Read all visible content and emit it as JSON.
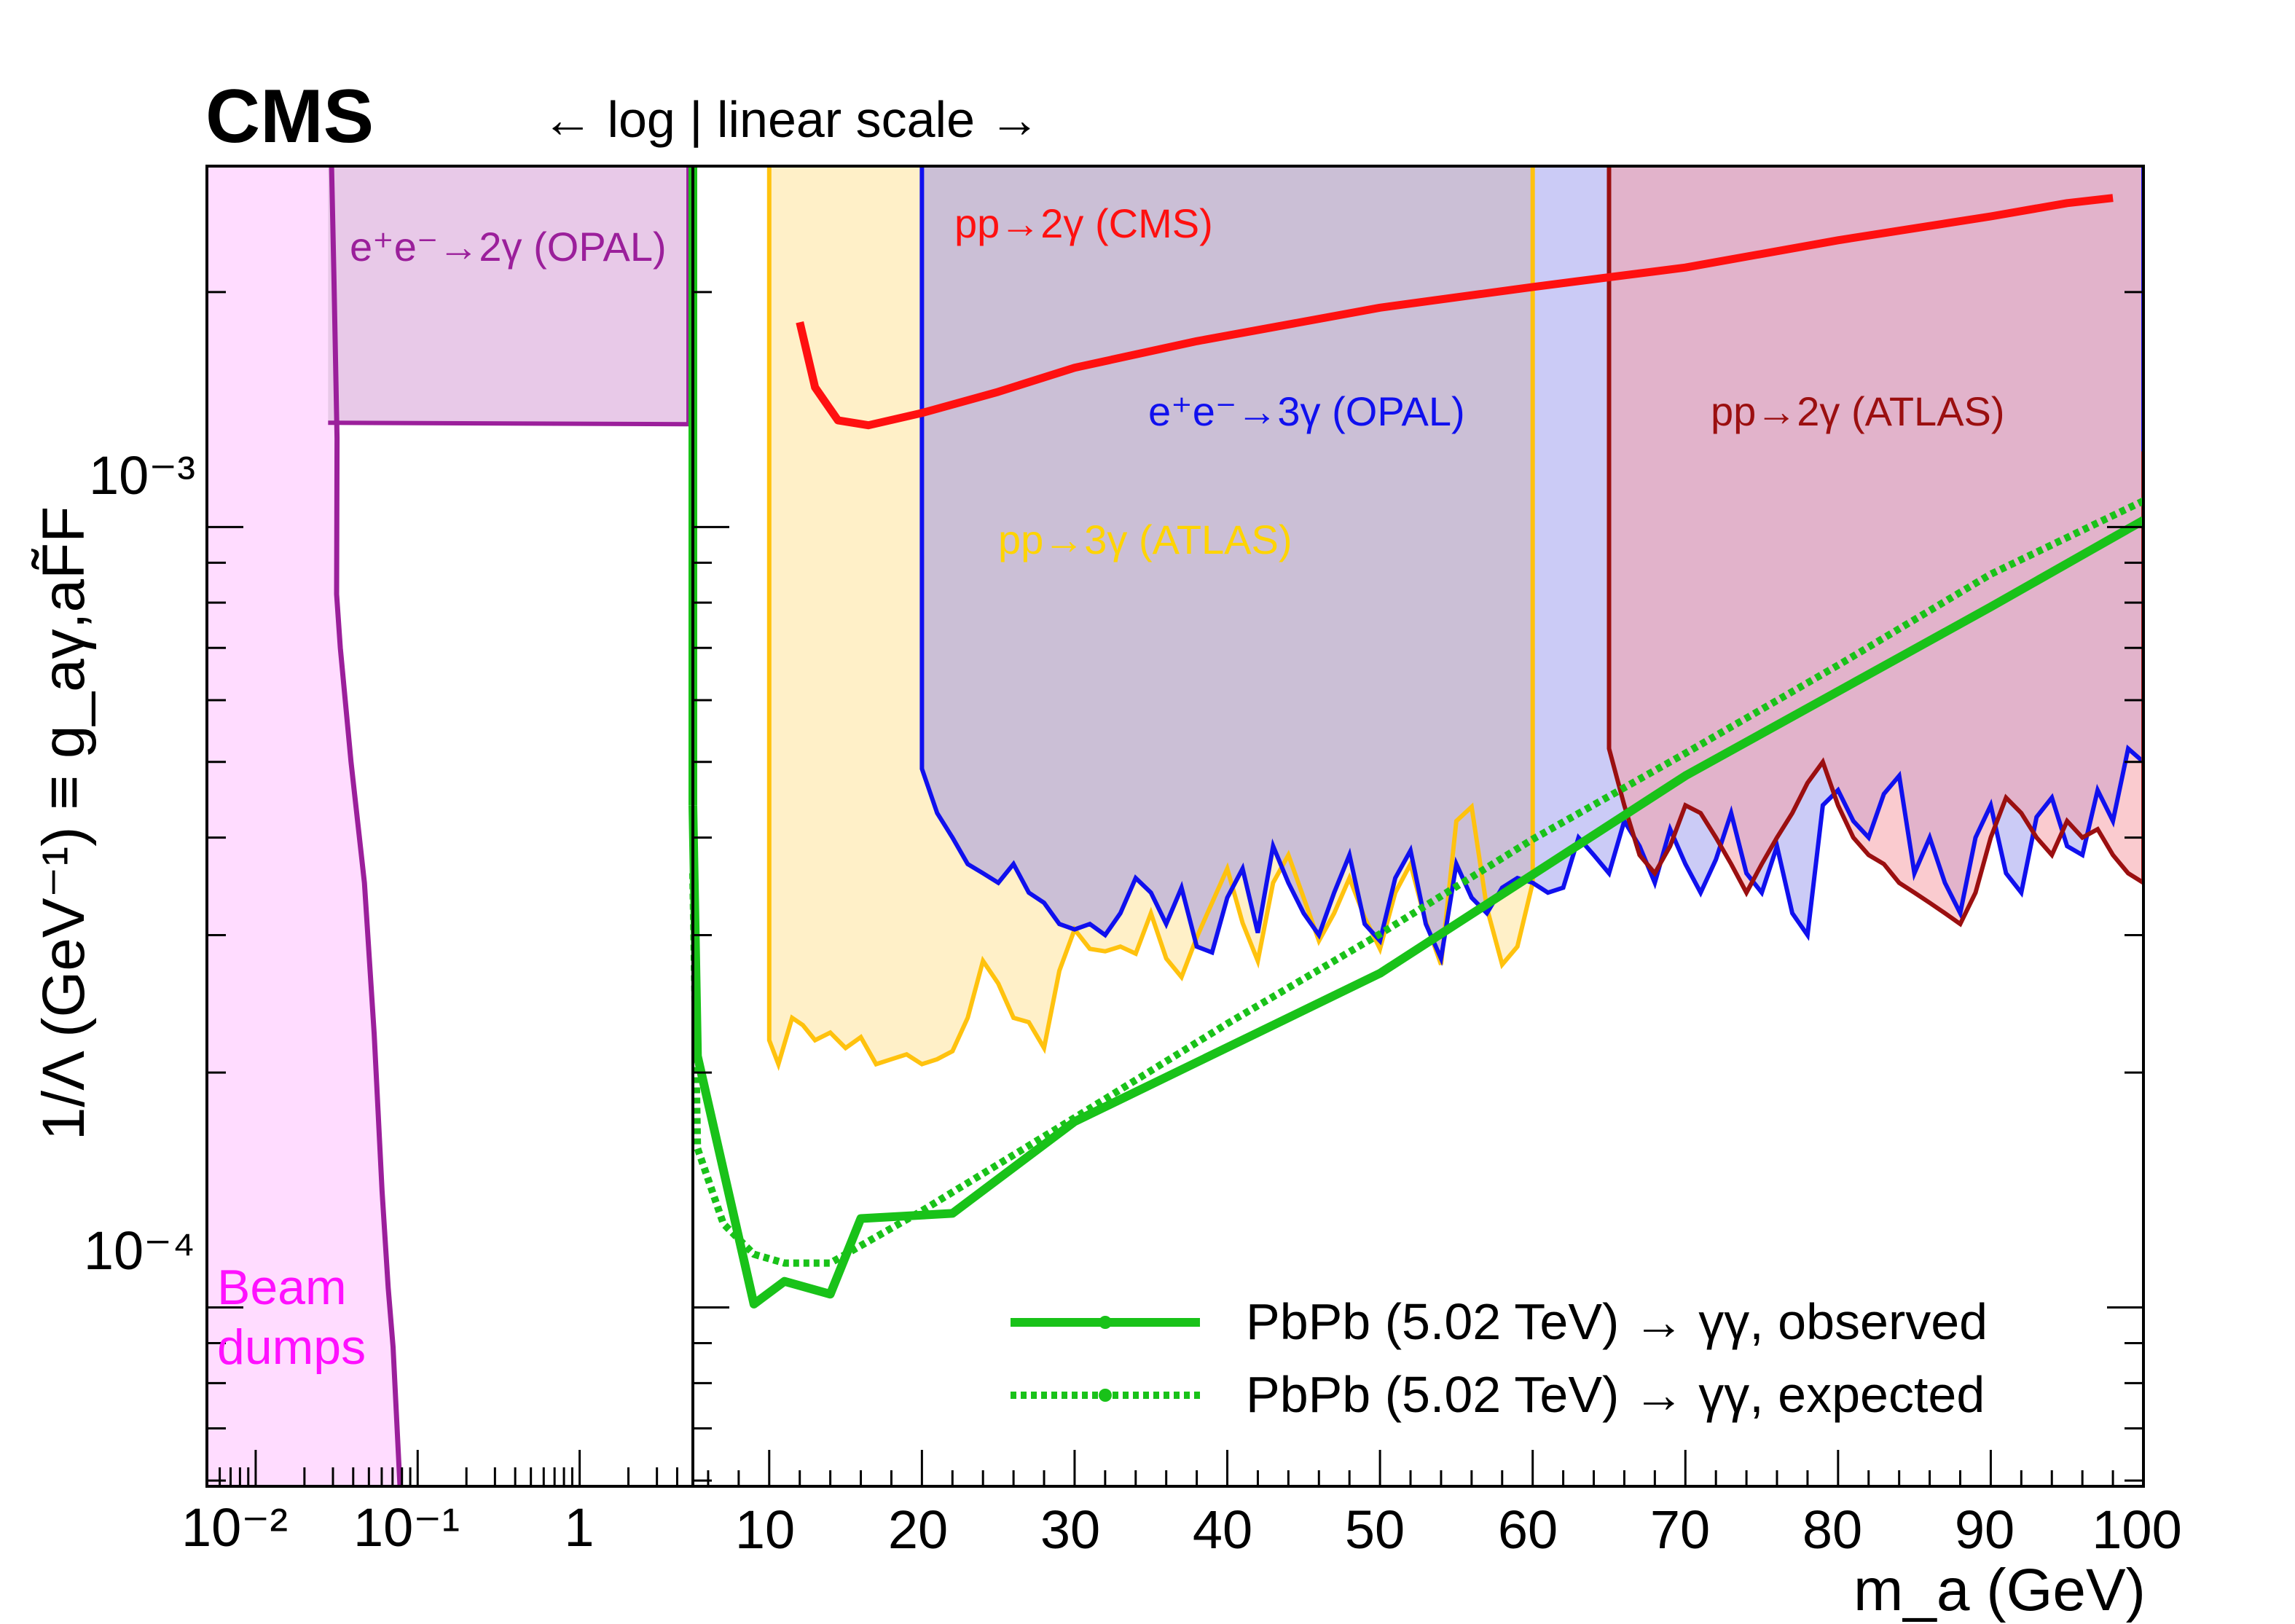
{
  "experiment_label": "CMS",
  "scale_note": "← log | linear scale →",
  "chart_data": {
    "type": "line",
    "title": "",
    "xlabel": "m_a (GeV)",
    "ylabel": "1/Λ (GeV⁻¹) ≡ g_aγ,aF̃F",
    "x_scale": "log (0.005–5 GeV) | linear (5–100 GeV)",
    "y_scale": "log",
    "ylim": [
      5.9e-05,
      0.0029
    ],
    "x_ticks_log": [
      "10⁻²",
      "10⁻¹",
      "1"
    ],
    "x_ticks_linear": [
      "10",
      "20",
      "30",
      "40",
      "50",
      "60",
      "70",
      "80",
      "90",
      "100"
    ],
    "y_ticks": [
      "10⁻³",
      "10⁻⁴"
    ],
    "series": [
      {
        "name": "PbPb (5.02 TeV) → γγ, observed",
        "style": "solid",
        "color": "#19c219",
        "x": [
          5,
          5.3,
          9,
          11,
          14,
          16,
          22,
          30,
          50,
          70,
          90,
          100
        ],
        "y": [
          0.00044,
          0.00021,
          0.000101,
          0.000108,
          0.000104,
          0.00013,
          0.000132,
          0.000173,
          0.000268,
          0.00048,
          0.00079,
          0.00102
        ]
      },
      {
        "name": "PbPb (5.02 TeV) → γγ, expected",
        "style": "dotted",
        "color": "#19c219",
        "x": [
          5,
          5.3,
          7,
          9,
          11,
          14,
          16,
          20,
          30,
          40,
          50,
          60,
          70,
          80,
          90,
          100
        ],
        "y": [
          0.00036,
          0.00016,
          0.000128,
          0.000117,
          0.000114,
          0.000114,
          0.00012,
          0.000133,
          0.000175,
          0.000231,
          0.000301,
          0.000398,
          0.000513,
          0.000665,
          0.00087,
          0.00108
        ]
      },
      {
        "name": "pp→2γ (CMS)",
        "style": "solid",
        "color": "#ff1010",
        "x": [
          12,
          13,
          14.5,
          16.5,
          20,
          25,
          30,
          38,
          50,
          60,
          70,
          80,
          90,
          95,
          98
        ],
        "y": [
          0.00183,
          0.00151,
          0.00137,
          0.00135,
          0.0014,
          0.00149,
          0.0016,
          0.00173,
          0.00191,
          0.00203,
          0.00215,
          0.00233,
          0.0025,
          0.0026,
          0.00264
        ]
      },
      {
        "name": "pp→3γ (ATLAS)",
        "style": "solid",
        "color": "#ffc20e",
        "x": [
          10,
          10.6,
          11.5,
          12.2,
          13,
          14,
          15,
          16,
          17,
          18,
          19,
          20,
          21,
          22,
          23,
          24,
          25,
          26,
          27,
          28,
          29,
          30,
          31,
          32,
          33,
          34,
          35,
          36,
          37,
          38,
          39,
          40,
          41,
          42,
          43,
          44,
          45,
          46,
          47,
          48,
          49,
          50,
          51,
          52,
          53,
          54,
          55,
          56,
          57,
          58,
          59,
          60
        ],
        "y": [
          0.00022,
          0.000205,
          0.000235,
          0.00023,
          0.00022,
          0.000225,
          0.000215,
          0.000222,
          0.000205,
          0.000208,
          0.000211,
          0.000205,
          0.000208,
          0.000213,
          0.000235,
          0.000278,
          0.00026,
          0.000235,
          0.000232,
          0.000215,
          0.00027,
          0.000305,
          0.000288,
          0.000286,
          0.00029,
          0.000284,
          0.00032,
          0.00028,
          0.000265,
          0.000298,
          0.00033,
          0.000365,
          0.000311,
          0.000278,
          0.00035,
          0.00038,
          0.000335,
          0.000295,
          0.00032,
          0.000355,
          0.000316,
          0.000288,
          0.00034,
          0.00037,
          0.000312,
          0.000275,
          0.00042,
          0.000438,
          0.000325,
          0.000275,
          0.00029,
          0.00035
        ]
      },
      {
        "name": "e⁺e⁻→3γ (OPAL)",
        "style": "solid",
        "color": "#1010ee",
        "x": [
          20,
          21,
          22,
          23,
          24,
          25,
          26,
          27,
          28,
          29,
          30,
          31,
          32,
          33,
          34,
          35,
          36,
          37,
          38,
          39,
          40,
          41,
          42,
          43,
          44,
          45,
          46,
          47,
          48,
          49,
          50,
          51,
          52,
          53,
          54,
          55,
          56,
          57,
          58,
          59,
          60,
          61,
          62,
          63,
          64,
          65,
          66,
          67,
          68,
          69,
          70,
          71,
          72,
          73,
          74,
          75,
          76,
          77,
          78,
          79,
          80,
          81,
          82,
          83,
          84,
          85,
          86,
          87,
          88,
          89,
          90,
          91,
          92,
          93,
          94,
          95,
          96,
          97,
          98,
          99,
          100
        ],
        "y": [
          0.00049,
          0.00043,
          0.0004,
          0.00037,
          0.00036,
          0.00035,
          0.00037,
          0.00034,
          0.00033,
          0.00031,
          0.000305,
          0.00031,
          0.0003,
          0.00032,
          0.000355,
          0.00034,
          0.00031,
          0.000345,
          0.00029,
          0.000285,
          0.000335,
          0.000365,
          0.000302,
          0.00039,
          0.00035,
          0.00032,
          0.0003,
          0.00034,
          0.00038,
          0.00031,
          0.000295,
          0.000355,
          0.000385,
          0.00031,
          0.00028,
          0.00037,
          0.000335,
          0.00032,
          0.000345,
          0.000355,
          0.00035,
          0.00034,
          0.000345,
          0.0004,
          0.00038,
          0.00036,
          0.00042,
          0.00039,
          0.00035,
          0.00041,
          0.00037,
          0.00034,
          0.000375,
          0.00043,
          0.00036,
          0.00034,
          0.00039,
          0.00032,
          0.0003,
          0.00044,
          0.00046,
          0.00042,
          0.0004,
          0.000455,
          0.00048,
          0.00036,
          0.0004,
          0.00035,
          0.00032,
          0.0004,
          0.00044,
          0.00036,
          0.00034,
          0.000425,
          0.00045,
          0.00039,
          0.00038,
          0.00046,
          0.00042,
          0.00052,
          0.0005
        ]
      },
      {
        "name": "pp→2γ (ATLAS)",
        "style": "solid",
        "color": "#9b0f10",
        "x": [
          65,
          66,
          67,
          68,
          69,
          70,
          71,
          72,
          73,
          74,
          75,
          76,
          77,
          78,
          79,
          80,
          81,
          82,
          83,
          84,
          85,
          86,
          87,
          88,
          89,
          90,
          91,
          92,
          93,
          94,
          95,
          96,
          97,
          98,
          99,
          100
        ],
        "y": [
          0.00052,
          0.00044,
          0.00038,
          0.00036,
          0.00039,
          0.00044,
          0.00043,
          0.0004,
          0.00037,
          0.00034,
          0.00037,
          0.0004,
          0.00043,
          0.00047,
          0.0005,
          0.00044,
          0.0004,
          0.00038,
          0.00037,
          0.00035,
          0.00034,
          0.00033,
          0.00032,
          0.00031,
          0.00034,
          0.0004,
          0.00045,
          0.00043,
          0.0004,
          0.00038,
          0.00042,
          0.0004,
          0.00041,
          0.00038,
          0.00036,
          0.00035
        ]
      },
      {
        "name": "e⁺e⁻→2γ (OPAL)",
        "style": "solid",
        "color": "#9b1f9b",
        "x_range": [
          0.028,
          5
        ],
        "y": [
          0.00136
        ]
      },
      {
        "name": "Beam dumps",
        "style": "solid",
        "color": "#9b1f9b",
        "x": [
          0.0294,
          0.0304,
          0.0318,
          0.0316,
          0.0333,
          0.0388,
          0.0469,
          0.0539,
          0.0603,
          0.0658,
          0.0705,
          0.0778
        ],
        "y": [
          0.0029,
          0.0021,
          0.0013,
          0.00082,
          0.0007,
          0.0005,
          0.00035,
          0.000224,
          0.000141,
          0.000106,
          8.9e-05,
          5.9e-05
        ]
      }
    ],
    "legend": [
      "PbPb (5.02 TeV) → γγ, observed",
      "PbPb (5.02 TeV) → γγ, expected"
    ],
    "legend_position": "bottom-right",
    "annotations": {
      "opal2": "e⁺e⁻→2γ (OPAL)",
      "cms2": "pp→2γ (CMS)",
      "opal3": "e⁺e⁻→3γ (OPAL)",
      "atlas3": "pp→3γ (ATLAS)",
      "atlas2": "pp→2γ (ATLAS)",
      "beam": "Beam dumps"
    }
  }
}
